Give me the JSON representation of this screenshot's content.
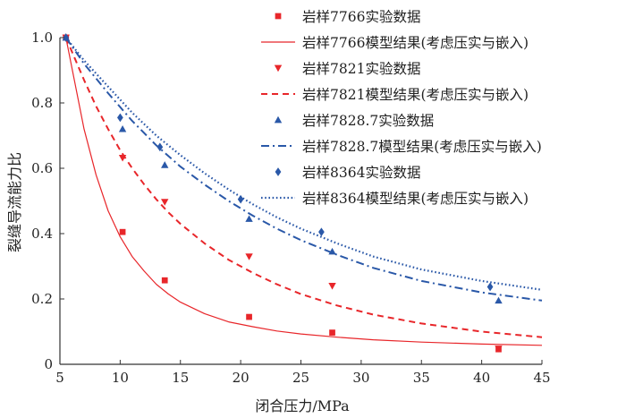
{
  "chart_data": {
    "type": "scatter",
    "xlabel": "闭合压力/MPa",
    "ylabel": "裂缝导流能力比",
    "xlim": [
      5,
      45
    ],
    "ylim": [
      0,
      1.0
    ],
    "xticks": [
      "5",
      "10",
      "15",
      "20",
      "25",
      "30",
      "35",
      "40",
      "45"
    ],
    "yticks": [
      "0",
      "0.2",
      "0.4",
      "0.6",
      "0.8",
      "1.0"
    ],
    "grid": false,
    "legend_position": "top-right",
    "series": [
      {
        "key": "s7766",
        "color": "#e8262a",
        "marker": "square",
        "line": "solid",
        "exp_label": "岩样7766实验数据",
        "model_label": "岩样7766模型结果(考虑压实与嵌入)",
        "points": [
          [
            5.5,
            1.0
          ],
          [
            10.2,
            0.405
          ],
          [
            13.7,
            0.257
          ],
          [
            20.7,
            0.145
          ],
          [
            27.6,
            0.097
          ],
          [
            41.4,
            0.046
          ]
        ],
        "model": [
          [
            5.5,
            1.0
          ],
          [
            7,
            0.72
          ],
          [
            8,
            0.58
          ],
          [
            9,
            0.47
          ],
          [
            10,
            0.39
          ],
          [
            11,
            0.33
          ],
          [
            12,
            0.285
          ],
          [
            13,
            0.245
          ],
          [
            14,
            0.215
          ],
          [
            15,
            0.19
          ],
          [
            17,
            0.155
          ],
          [
            19,
            0.13
          ],
          [
            21,
            0.115
          ],
          [
            23,
            0.102
          ],
          [
            25,
            0.093
          ],
          [
            28,
            0.083
          ],
          [
            31,
            0.075
          ],
          [
            35,
            0.068
          ],
          [
            40,
            0.062
          ],
          [
            45,
            0.058
          ]
        ]
      },
      {
        "key": "s7821",
        "color": "#e8262a",
        "marker": "triangle-down",
        "line": "dashed",
        "exp_label": "岩样7821实验数据",
        "model_label": "岩样7821模型结果(考虑压实与嵌入)",
        "points": [
          [
            5.5,
            1.0
          ],
          [
            10.2,
            0.632
          ],
          [
            13.7,
            0.497
          ],
          [
            20.7,
            0.33
          ],
          [
            27.6,
            0.24
          ],
          [
            41.4,
            0.048
          ]
        ],
        "model": [
          [
            5.5,
            1.0
          ],
          [
            7,
            0.87
          ],
          [
            8,
            0.79
          ],
          [
            9,
            0.72
          ],
          [
            10,
            0.655
          ],
          [
            11,
            0.6
          ],
          [
            12,
            0.55
          ],
          [
            13,
            0.505
          ],
          [
            14,
            0.465
          ],
          [
            15,
            0.43
          ],
          [
            17,
            0.37
          ],
          [
            19,
            0.32
          ],
          [
            21,
            0.28
          ],
          [
            23,
            0.245
          ],
          [
            25,
            0.215
          ],
          [
            28,
            0.18
          ],
          [
            31,
            0.152
          ],
          [
            35,
            0.125
          ],
          [
            40,
            0.1
          ],
          [
            45,
            0.083
          ]
        ]
      },
      {
        "key": "s7828",
        "color": "#2a58a8",
        "marker": "triangle-up",
        "line": "dashdot",
        "exp_label": "岩样7828.7实验数据",
        "model_label": "岩样7828.7模型结果(考虑压实与嵌入)",
        "points": [
          [
            5.5,
            1.0
          ],
          [
            10.2,
            0.72
          ],
          [
            13.7,
            0.61
          ],
          [
            20.7,
            0.445
          ],
          [
            27.6,
            0.345
          ],
          [
            41.4,
            0.195
          ]
        ],
        "model": [
          [
            5.5,
            1.0
          ],
          [
            7,
            0.92
          ],
          [
            9,
            0.83
          ],
          [
            11,
            0.745
          ],
          [
            13,
            0.67
          ],
          [
            15,
            0.605
          ],
          [
            17,
            0.55
          ],
          [
            19,
            0.5
          ],
          [
            21,
            0.455
          ],
          [
            23,
            0.415
          ],
          [
            25,
            0.38
          ],
          [
            28,
            0.335
          ],
          [
            31,
            0.295
          ],
          [
            35,
            0.255
          ],
          [
            40,
            0.22
          ],
          [
            45,
            0.195
          ]
        ]
      },
      {
        "key": "s8364",
        "color": "#2a58a8",
        "marker": "diamond",
        "line": "dotted",
        "exp_label": "岩样8364实验数据",
        "model_label": "岩样8364模型结果(考虑压实与嵌入)",
        "points": [
          [
            5.5,
            1.0
          ],
          [
            10.0,
            0.755
          ],
          [
            13.3,
            0.665
          ],
          [
            20.0,
            0.505
          ],
          [
            26.7,
            0.405
          ],
          [
            40.7,
            0.237
          ]
        ],
        "model": [
          [
            5.5,
            1.0
          ],
          [
            7,
            0.93
          ],
          [
            9,
            0.85
          ],
          [
            11,
            0.77
          ],
          [
            13,
            0.7
          ],
          [
            15,
            0.64
          ],
          [
            17,
            0.585
          ],
          [
            19,
            0.535
          ],
          [
            21,
            0.49
          ],
          [
            23,
            0.45
          ],
          [
            25,
            0.415
          ],
          [
            28,
            0.37
          ],
          [
            31,
            0.33
          ],
          [
            35,
            0.29
          ],
          [
            40,
            0.255
          ],
          [
            45,
            0.228
          ]
        ]
      }
    ]
  }
}
